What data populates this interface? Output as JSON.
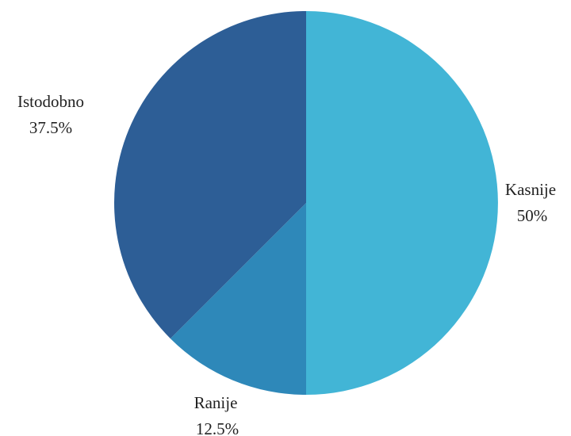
{
  "chart_data": {
    "type": "pie",
    "start_angle": "12 o'clock",
    "direction": "clockwise",
    "slices": [
      {
        "label": "Kasnije",
        "value": 50,
        "value_label": "50%",
        "color": "#42B5D6"
      },
      {
        "label": "Ranije",
        "value": 12.5,
        "value_label": "12.5%",
        "color": "#2E88B9"
      },
      {
        "label": "Istodobno",
        "value": 37.5,
        "value_label": "37.5%",
        "color": "#2D5E96"
      }
    ]
  }
}
